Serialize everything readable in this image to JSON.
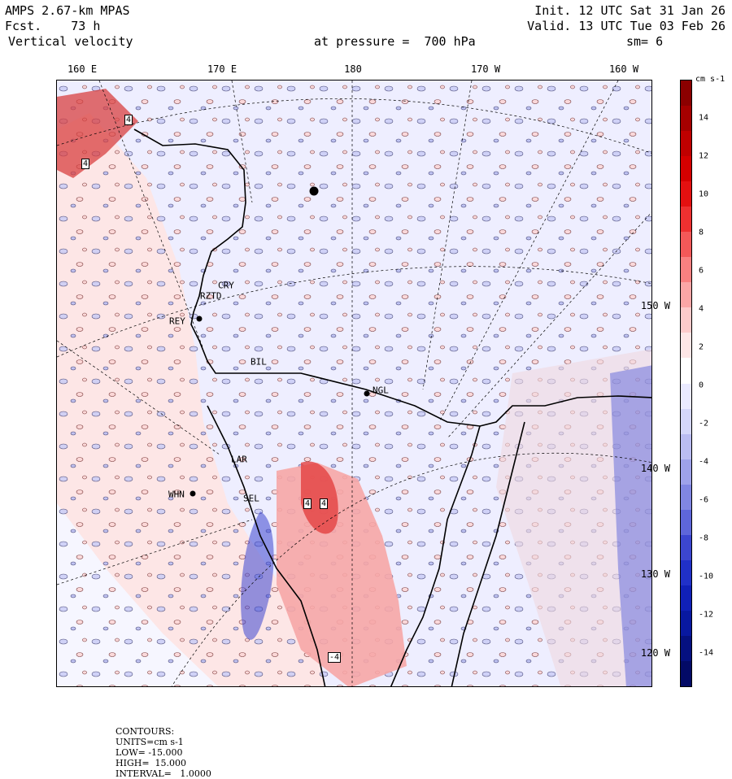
{
  "header": {
    "model": "AMPS 2.67-km MPAS",
    "forecast": "Fcst.    73 h",
    "field": "Vertical velocity",
    "pressure": "at pressure =  700 hPa",
    "init": "Init. 12 UTC Sat 31 Jan 26",
    "valid": "Valid. 13 UTC Tue 03 Feb 26",
    "smoothing": "sm= 6"
  },
  "longitude_labels": [
    "160 E",
    "170 E",
    "180",
    "170 W",
    "160 W"
  ],
  "latitude_labels": [
    "150 W",
    "140 W",
    "130 W",
    "120 W"
  ],
  "stations": [
    "CRY",
    "RZTD",
    "REY",
    "BIL",
    "NGL",
    "LAR",
    "WHN",
    "SEL"
  ],
  "contour_box_labels": [
    "4",
    "4",
    "4",
    "4",
    "-4"
  ],
  "colorbar": {
    "unit": "cm s-1",
    "ticks": [
      "14",
      "12",
      "10",
      "8",
      "6",
      "4",
      "2",
      "0",
      "-2",
      "-4",
      "-6",
      "-8",
      "-10",
      "-12",
      "-14"
    ],
    "colors": [
      "#8b0000",
      "#a50000",
      "#c00000",
      "#d50000",
      "#e41010",
      "#ee3030",
      "#f45858",
      "#f98080",
      "#fba6a6",
      "#fdcaca",
      "#fee6e6",
      "#ffffff",
      "#eaeaff",
      "#d4d6fa",
      "#babcf2",
      "#9ea2ea",
      "#8086e2",
      "#5e66da",
      "#3c46d0",
      "#2030c8",
      "#1020b8",
      "#0818a0",
      "#051080",
      "#030a66"
    ]
  },
  "footer": {
    "contours": "CONTOURS:",
    "units": "UNITS=cm s-1",
    "low": "LOW= -15.000",
    "high": "HIGH=  15.000",
    "interval": "INTERVAL=   1.0000"
  }
}
